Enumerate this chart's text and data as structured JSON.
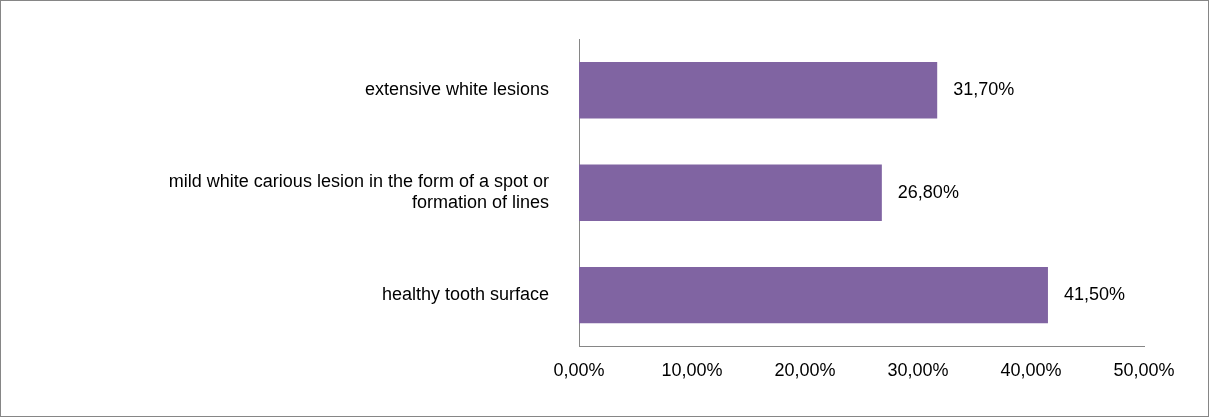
{
  "chart_data": {
    "type": "bar",
    "orientation": "horizontal",
    "categories": [
      "extensive white lesions",
      "mild white carious lesion in the form of a spot or formation of lines",
      "healthy tooth surface"
    ],
    "values": [
      31.7,
      26.8,
      41.5
    ],
    "value_labels": [
      "31,70%",
      "26,80%",
      "41,50%"
    ],
    "color": "#8064a2",
    "xlim": [
      0,
      50
    ],
    "xticks": [
      {
        "value": 0,
        "label": "0,00%"
      },
      {
        "value": 10,
        "label": "10,00%"
      },
      {
        "value": 20,
        "label": "20,00%"
      },
      {
        "value": 30,
        "label": "30,00%"
      },
      {
        "value": 40,
        "label": "40,00%"
      },
      {
        "value": 50,
        "label": "50,00%"
      }
    ],
    "grid": false,
    "legend": false
  }
}
